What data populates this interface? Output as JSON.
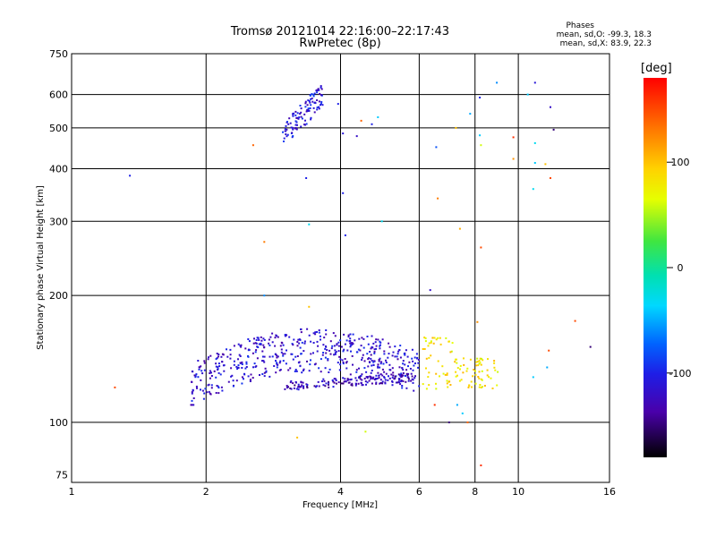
{
  "header": {
    "title": "Tromsø 20121014 22:16:00–22:17:43",
    "subtitle": "RwPretec (8p)"
  },
  "stats": {
    "title": "Phases",
    "o_mode": "mean, sd,O: -99.3, 18.3",
    "x_mode": "mean, sd,X:  83.9, 22.3"
  },
  "chart_data": {
    "type": "scatter",
    "xlabel": "Frequency [MHz]",
    "ylabel": "Stationary phase Virtual Height [km]",
    "xscale": "log",
    "yscale": "log",
    "xlim": [
      1,
      16
    ],
    "ylim": [
      72,
      750
    ],
    "xticks": [
      1,
      2,
      4,
      6,
      8,
      10,
      16
    ],
    "yticks": [
      75,
      100,
      200,
      300,
      400,
      500,
      600,
      750
    ],
    "grid": true,
    "colorbar": {
      "label": "[deg]",
      "range": [
        -180,
        180
      ],
      "ticks": [
        100,
        0,
        -100
      ]
    },
    "clusters": [
      {
        "name": "lower-O-trace",
        "x_range": [
          1.85,
          6.0
        ],
        "y_range": [
          110,
          180
        ],
        "phase": -115,
        "count": 520
      },
      {
        "name": "lower-O-bottom",
        "x_range": [
          3.0,
          5.9
        ],
        "y_range": [
          118,
          132
        ],
        "phase": -125,
        "count": 160
      },
      {
        "name": "lower-X-trace",
        "x_range": [
          6.1,
          9.0
        ],
        "y_range": [
          115,
          160
        ],
        "phase": 82,
        "count": 110
      },
      {
        "name": "upper-O-trace",
        "x_range": [
          2.95,
          3.65
        ],
        "y_range": [
          455,
          640
        ],
        "phase": -110,
        "count": 110
      }
    ],
    "points": [
      {
        "x": 1.35,
        "y": 385,
        "phase": -100
      },
      {
        "x": 1.25,
        "y": 121,
        "phase": 150
      },
      {
        "x": 2.55,
        "y": 455,
        "phase": 140
      },
      {
        "x": 2.7,
        "y": 268,
        "phase": 130
      },
      {
        "x": 2.7,
        "y": 200,
        "phase": -60
      },
      {
        "x": 3.35,
        "y": 380,
        "phase": -100
      },
      {
        "x": 3.4,
        "y": 295,
        "phase": -30
      },
      {
        "x": 3.4,
        "y": 188,
        "phase": 100
      },
      {
        "x": 3.95,
        "y": 570,
        "phase": -100
      },
      {
        "x": 4.05,
        "y": 350,
        "phase": -100
      },
      {
        "x": 4.1,
        "y": 278,
        "phase": -100
      },
      {
        "x": 4.05,
        "y": 485,
        "phase": -110
      },
      {
        "x": 4.35,
        "y": 478,
        "phase": -120
      },
      {
        "x": 4.45,
        "y": 520,
        "phase": 140
      },
      {
        "x": 4.7,
        "y": 510,
        "phase": -100
      },
      {
        "x": 4.85,
        "y": 530,
        "phase": -40
      },
      {
        "x": 4.95,
        "y": 300,
        "phase": -30
      },
      {
        "x": 6.35,
        "y": 206,
        "phase": -120
      },
      {
        "x": 6.55,
        "y": 450,
        "phase": -80
      },
      {
        "x": 6.6,
        "y": 340,
        "phase": 130
      },
      {
        "x": 7.25,
        "y": 500,
        "phase": 100
      },
      {
        "x": 7.4,
        "y": 288,
        "phase": 110
      },
      {
        "x": 7.8,
        "y": 540,
        "phase": -50
      },
      {
        "x": 8.2,
        "y": 590,
        "phase": -100
      },
      {
        "x": 8.2,
        "y": 480,
        "phase": -40
      },
      {
        "x": 8.25,
        "y": 455,
        "phase": 60
      },
      {
        "x": 8.25,
        "y": 260,
        "phase": 150
      },
      {
        "x": 8.25,
        "y": 79,
        "phase": 160
      },
      {
        "x": 8.95,
        "y": 640,
        "phase": -60
      },
      {
        "x": 9.75,
        "y": 475,
        "phase": 160
      },
      {
        "x": 9.75,
        "y": 422,
        "phase": 120
      },
      {
        "x": 10.5,
        "y": 600,
        "phase": -40
      },
      {
        "x": 10.9,
        "y": 640,
        "phase": -110
      },
      {
        "x": 10.9,
        "y": 460,
        "phase": -30
      },
      {
        "x": 10.9,
        "y": 413,
        "phase": -40
      },
      {
        "x": 10.8,
        "y": 358,
        "phase": -30
      },
      {
        "x": 11.5,
        "y": 410,
        "phase": 100
      },
      {
        "x": 11.8,
        "y": 380,
        "phase": 150
      },
      {
        "x": 11.8,
        "y": 560,
        "phase": -120
      },
      {
        "x": 12.0,
        "y": 495,
        "phase": -150
      },
      {
        "x": 10.8,
        "y": 128,
        "phase": -40
      },
      {
        "x": 11.7,
        "y": 148,
        "phase": 150
      },
      {
        "x": 11.6,
        "y": 135,
        "phase": -50
      },
      {
        "x": 13.4,
        "y": 174,
        "phase": 150
      },
      {
        "x": 14.5,
        "y": 151,
        "phase": -150
      },
      {
        "x": 8.1,
        "y": 173,
        "phase": 120
      },
      {
        "x": 3.2,
        "y": 92,
        "phase": 100
      },
      {
        "x": 4.55,
        "y": 95,
        "phase": 60
      },
      {
        "x": 7.7,
        "y": 100,
        "phase": 140
      },
      {
        "x": 7.5,
        "y": 105,
        "phase": -40
      },
      {
        "x": 7.0,
        "y": 100,
        "phase": -150
      },
      {
        "x": 7.3,
        "y": 110,
        "phase": -50
      },
      {
        "x": 6.5,
        "y": 110,
        "phase": 160
      }
    ]
  }
}
